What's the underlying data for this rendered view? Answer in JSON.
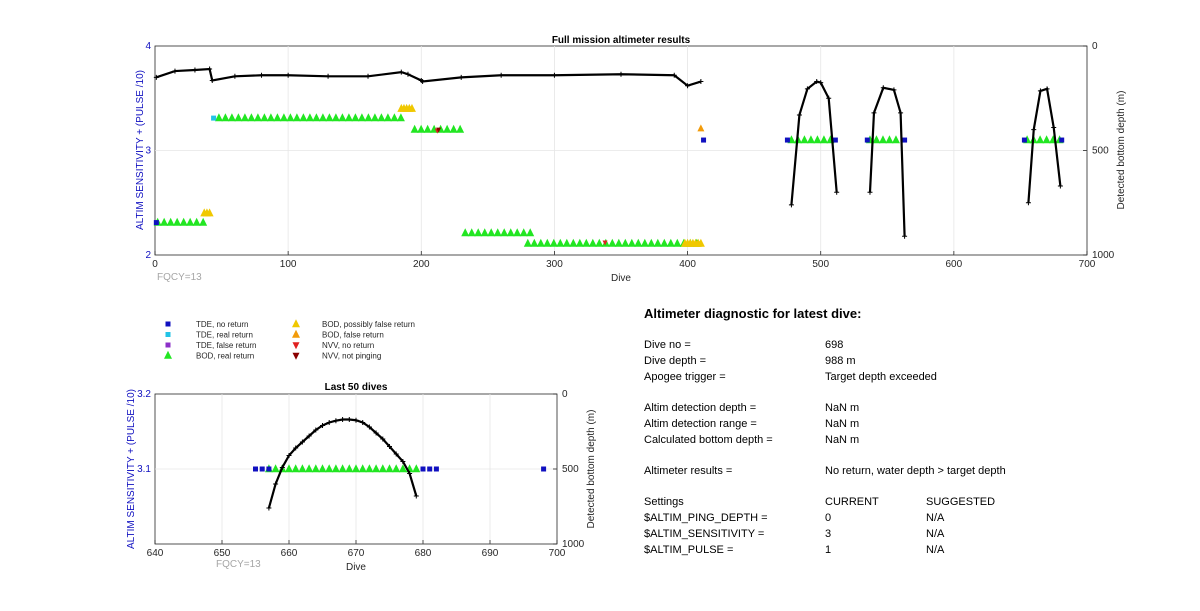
{
  "chart_data": [
    {
      "type": "scatter",
      "title": "Full mission altimeter results",
      "xlabel": "Dive",
      "ylabel": "ALTIM SENSITIVITY + (PULSE /10)",
      "y2label": "Detected bottom depth (m)",
      "xlim": [
        0,
        700
      ],
      "ylim": [
        2,
        4
      ],
      "y2lim": [
        1000,
        0
      ],
      "xticks": [
        "0",
        "100",
        "200",
        "300",
        "400",
        "500",
        "600",
        "700"
      ],
      "yticks": [
        "2",
        "3",
        "4"
      ],
      "y2ticks": [
        "1000",
        "500",
        "0"
      ],
      "annotation": "FQCY=13",
      "grid": true,
      "segments": [
        {
          "series": "BOD, real return",
          "x_start": 2,
          "x_end": 38,
          "y": 2.31
        },
        {
          "series": "BOD, real return",
          "x_start": 48,
          "x_end": 185,
          "y": 3.31
        },
        {
          "series": "BOD, real return",
          "x_start": 195,
          "x_end": 232,
          "y": 3.2
        },
        {
          "series": "BOD, real return",
          "x_start": 233,
          "x_end": 282,
          "y": 2.21
        },
        {
          "series": "BOD, real return",
          "x_start": 280,
          "x_end": 410,
          "y": 2.11
        },
        {
          "series": "BOD, real return",
          "x_start": 478,
          "x_end": 510,
          "y": 3.1
        },
        {
          "series": "BOD, real return",
          "x_start": 537,
          "x_end": 560,
          "y": 3.1
        },
        {
          "series": "BOD, real return",
          "x_start": 655,
          "x_end": 680,
          "y": 3.1
        }
      ],
      "bod_possibly_false": [
        [
          37,
          2.4
        ],
        [
          39,
          2.4
        ],
        [
          41,
          2.4
        ],
        [
          185,
          3.4
        ],
        [
          187,
          3.4
        ],
        [
          189,
          3.4
        ],
        [
          191,
          3.4
        ],
        [
          193,
          3.4
        ],
        [
          398,
          2.11
        ],
        [
          400,
          2.11
        ],
        [
          402,
          2.11
        ],
        [
          404,
          2.11
        ],
        [
          406,
          2.11
        ],
        [
          408,
          2.11
        ],
        [
          410,
          2.11
        ]
      ],
      "bod_false": [
        [
          410,
          3.21
        ]
      ],
      "tde_no_return": [
        [
          1,
          2.31
        ],
        [
          412,
          3.1
        ],
        [
          475,
          3.1
        ],
        [
          511,
          3.1
        ],
        [
          535,
          3.1
        ],
        [
          563,
          3.1
        ],
        [
          653,
          3.1
        ],
        [
          681,
          3.1
        ]
      ],
      "tde_real_return": [
        [
          44,
          3.31
        ]
      ],
      "nvv_no_return": [
        [
          212,
          3.19
        ],
        [
          338,
          2.12
        ]
      ],
      "nvv_not_pinging": [
        [
          213,
          3.2
        ]
      ],
      "bottom_depth_series": {
        "name": "Detected bottom depth",
        "x": [
          1,
          15,
          30,
          41,
          43,
          60,
          80,
          100,
          130,
          160,
          185,
          190,
          200,
          201,
          230,
          260,
          300,
          350,
          390,
          400,
          410
        ],
        "y": [
          150,
          120,
          115,
          110,
          165,
          145,
          140,
          140,
          145,
          145,
          125,
          135,
          165,
          170,
          150,
          140,
          140,
          135,
          140,
          190,
          170
        ]
      },
      "dives": [
        {
          "x": [
            478,
            484,
            490,
            497,
            500,
            506,
            512
          ],
          "y": [
            760,
            330,
            205,
            170,
            175,
            250,
            700
          ]
        },
        {
          "x": [
            537,
            540,
            547,
            555,
            560,
            563
          ],
          "y": [
            700,
            320,
            200,
            210,
            320,
            910
          ]
        },
        {
          "x": [
            656,
            660,
            665,
            670,
            675,
            680
          ],
          "y": [
            750,
            400,
            215,
            205,
            390,
            670
          ]
        }
      ]
    },
    {
      "type": "scatter",
      "title": "Last 50 dives",
      "xlabel": "Dive",
      "ylabel": "ALTIM SENSITIVITY + (PULSE /10)",
      "y2label": "Detected bottom depth (m)",
      "xlim": [
        640,
        700
      ],
      "ylim": [
        3.0,
        3.2
      ],
      "y2lim": [
        1000,
        0
      ],
      "xticks": [
        "640",
        "650",
        "660",
        "670",
        "680",
        "690",
        "700"
      ],
      "yticks": [
        "3.1",
        "3.2"
      ],
      "y2ticks": [
        "1000",
        "500",
        "0"
      ],
      "annotation": "FQCY=13",
      "grid": true,
      "tde_no_return_x": [
        655,
        656,
        657,
        680,
        681,
        682,
        698
      ],
      "bod_real_return_x": [
        657,
        658,
        659,
        660,
        661,
        662,
        663,
        664,
        665,
        666,
        667,
        668,
        669,
        670,
        671,
        672,
        673,
        674,
        675,
        676,
        677,
        678,
        679
      ],
      "y_markers": 3.1,
      "bottom_depth_series": {
        "name": "Detected bottom depth",
        "x": [
          657,
          658,
          659,
          660,
          661,
          662,
          663,
          664,
          665,
          666,
          667,
          668,
          669,
          670,
          671,
          672,
          673,
          674,
          675,
          676,
          677,
          678,
          679
        ],
        "y": [
          760,
          600,
          490,
          410,
          360,
          320,
          280,
          240,
          210,
          190,
          178,
          170,
          170,
          175,
          190,
          220,
          260,
          300,
          350,
          400,
          450,
          530,
          680
        ]
      }
    }
  ],
  "legend": {
    "items": [
      {
        "label": "TDE, no return",
        "marker": "square",
        "color": "#1010c0"
      },
      {
        "label": "TDE, real return",
        "marker": "square",
        "color": "#22c3e6"
      },
      {
        "label": "TDE, false return",
        "marker": "square",
        "color": "#8c30c8"
      },
      {
        "label": "BOD, real return",
        "marker": "triangle-up",
        "color": "#22e622"
      },
      {
        "label": "BOD, possibly false return",
        "marker": "triangle-up",
        "color": "#f0c800"
      },
      {
        "label": "BOD, false return",
        "marker": "triangle-up",
        "color": "#f29b0a"
      },
      {
        "label": "NVV, no return",
        "marker": "triangle-down",
        "color": "#e02020"
      },
      {
        "label": "NVV, not pinging",
        "marker": "triangle-down",
        "color": "#8b0000"
      }
    ]
  },
  "diagnostic": {
    "heading": "Altimeter diagnostic for latest dive:",
    "dive_no_label": "Dive no =",
    "dive_no": "698",
    "dive_depth_label": "Dive depth =",
    "dive_depth": "988 m",
    "apogee_label": "Apogee trigger =",
    "apogee": "Target depth exceeded",
    "altim_det_depth_label": "Altim detection depth =",
    "altim_det_depth": "NaN m",
    "altim_det_range_label": "Altim detection range =",
    "altim_det_range": "NaN m",
    "calc_bottom_label": "Calculated bottom depth =",
    "calc_bottom": "NaN m",
    "results_label": "Altimeter results =",
    "results": "No return, water depth > target depth",
    "settings_label": "Settings",
    "current_label": "CURRENT",
    "suggested_label": "SUGGESTED",
    "ping_depth_label": "$ALTIM_PING_DEPTH =",
    "ping_depth_current": "0",
    "ping_depth_suggested": "N/A",
    "sensitivity_label": "$ALTIM_SENSITIVITY =",
    "sensitivity_current": "3",
    "sensitivity_suggested": "N/A",
    "pulse_label": "$ALTIM_PULSE =",
    "pulse_current": "1",
    "pulse_suggested": "N/A"
  },
  "colors": {
    "tde_no_return": "#1010c0",
    "tde_real_return": "#22c3e6",
    "tde_false_return": "#8c30c8",
    "bod_real_return": "#22e622",
    "bod_possibly_false": "#f0c800",
    "bod_false": "#f29b0a",
    "nvv_no_return": "#e02020",
    "nvv_not_pinging": "#8b0000",
    "depth_line": "#000000",
    "axis_label_blue": "#1010c0",
    "annotation_grey": "#a6a6a6"
  }
}
